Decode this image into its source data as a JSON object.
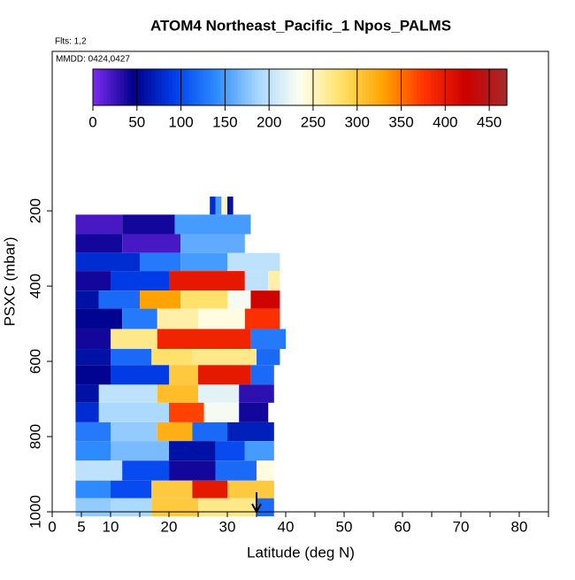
{
  "chart_data": {
    "type": "curtain",
    "title": "ATOM4 Northeast_Pacific_1 Npos_PALMS",
    "subtitle": "Flts: 1,2",
    "annotation": "MMDD: 0424,0427",
    "x_label": "Latitude (deg N)",
    "y_label": "PSXC (mbar)",
    "xlim": [
      0,
      85
    ],
    "xticks": [
      0,
      5,
      10,
      20,
      30,
      40,
      50,
      60,
      70,
      80
    ],
    "xminorticks": [
      15,
      25,
      35,
      45,
      55,
      65,
      75,
      85
    ],
    "ylim": [
      1000,
      -224
    ],
    "yticks": [
      200,
      400,
      600,
      800,
      1000
    ],
    "arrow_x": 35,
    "colorbar": {
      "lim": [
        0,
        470
      ],
      "ticks": [
        0,
        50,
        100,
        150,
        200,
        250,
        300,
        350,
        400,
        450
      ],
      "colors": [
        "#7a2cf0",
        "#00008b",
        "#0040ee",
        "#2f8cff",
        "#a8d8ff",
        "#fffff0",
        "#ffe066",
        "#ffa500",
        "#ff3300",
        "#cc0000",
        "#a52a2a"
      ]
    },
    "rows": [
      {
        "p": [
          162,
          210
        ],
        "lats": [
          27,
          28,
          29,
          30,
          31
        ],
        "values": [
          80,
          150,
          250,
          60
        ]
      },
      {
        "p": [
          210,
          262
        ],
        "lats": [
          4,
          12,
          21,
          34
        ],
        "values": [
          20,
          40,
          150
        ]
      },
      {
        "p": [
          262,
          312
        ],
        "lats": [
          4,
          12,
          22,
          33
        ],
        "values": [
          40,
          20,
          160
        ]
      },
      {
        "p": [
          312,
          360
        ],
        "lats": [
          4,
          15,
          22,
          30,
          39
        ],
        "values": [
          80,
          130,
          150,
          200
        ]
      },
      {
        "p": [
          360,
          412
        ],
        "lats": [
          4,
          10,
          20,
          33,
          37,
          39
        ],
        "values": [
          40,
          90,
          400,
          200,
          260
        ]
      },
      {
        "p": [
          412,
          460
        ],
        "lats": [
          4,
          8,
          15,
          22,
          30,
          34,
          39
        ],
        "values": [
          60,
          120,
          330,
          280,
          230,
          420
        ]
      },
      {
        "p": [
          460,
          514
        ],
        "lats": [
          4,
          12,
          18,
          25,
          33,
          39
        ],
        "values": [
          50,
          130,
          260,
          240,
          380
        ]
      },
      {
        "p": [
          514,
          567
        ],
        "lats": [
          4,
          10,
          18,
          34,
          40
        ],
        "values": [
          40,
          270,
          390,
          130
        ]
      },
      {
        "p": [
          567,
          610
        ],
        "lats": [
          4,
          10,
          17,
          24,
          35,
          39
        ],
        "values": [
          60,
          120,
          280,
          270,
          120
        ]
      },
      {
        "p": [
          610,
          662
        ],
        "lats": [
          4,
          10,
          20,
          25,
          34,
          38
        ],
        "values": [
          50,
          90,
          300,
          400,
          120
        ]
      },
      {
        "p": [
          662,
          710
        ],
        "lats": [
          4,
          8,
          18,
          25,
          32,
          38
        ],
        "values": [
          60,
          200,
          310,
          220,
          30
        ]
      },
      {
        "p": [
          710,
          762
        ],
        "lats": [
          4,
          8,
          20,
          26,
          32,
          37
        ],
        "values": [
          80,
          190,
          370,
          230,
          40
        ]
      },
      {
        "p": [
          762,
          812
        ],
        "lats": [
          4,
          10,
          18,
          24,
          30,
          38
        ],
        "values": [
          130,
          180,
          320,
          120,
          70
        ]
      },
      {
        "p": [
          812,
          864
        ],
        "lats": [
          4,
          10,
          20,
          28,
          33,
          38
        ],
        "values": [
          140,
          170,
          60,
          100,
          150
        ]
      },
      {
        "p": [
          864,
          917
        ],
        "lats": [
          4,
          12,
          20,
          28,
          35,
          38
        ],
        "values": [
          200,
          100,
          40,
          120,
          240
        ]
      },
      {
        "p": [
          917,
          964
        ],
        "lats": [
          4,
          10,
          17,
          24,
          30,
          38
        ],
        "values": [
          140,
          100,
          300,
          400,
          300
        ]
      },
      {
        "p": [
          964,
          1012
        ],
        "lats": [
          4,
          10,
          17,
          25,
          35,
          38
        ],
        "values": [
          180,
          190,
          300,
          270,
          120
        ]
      }
    ]
  }
}
